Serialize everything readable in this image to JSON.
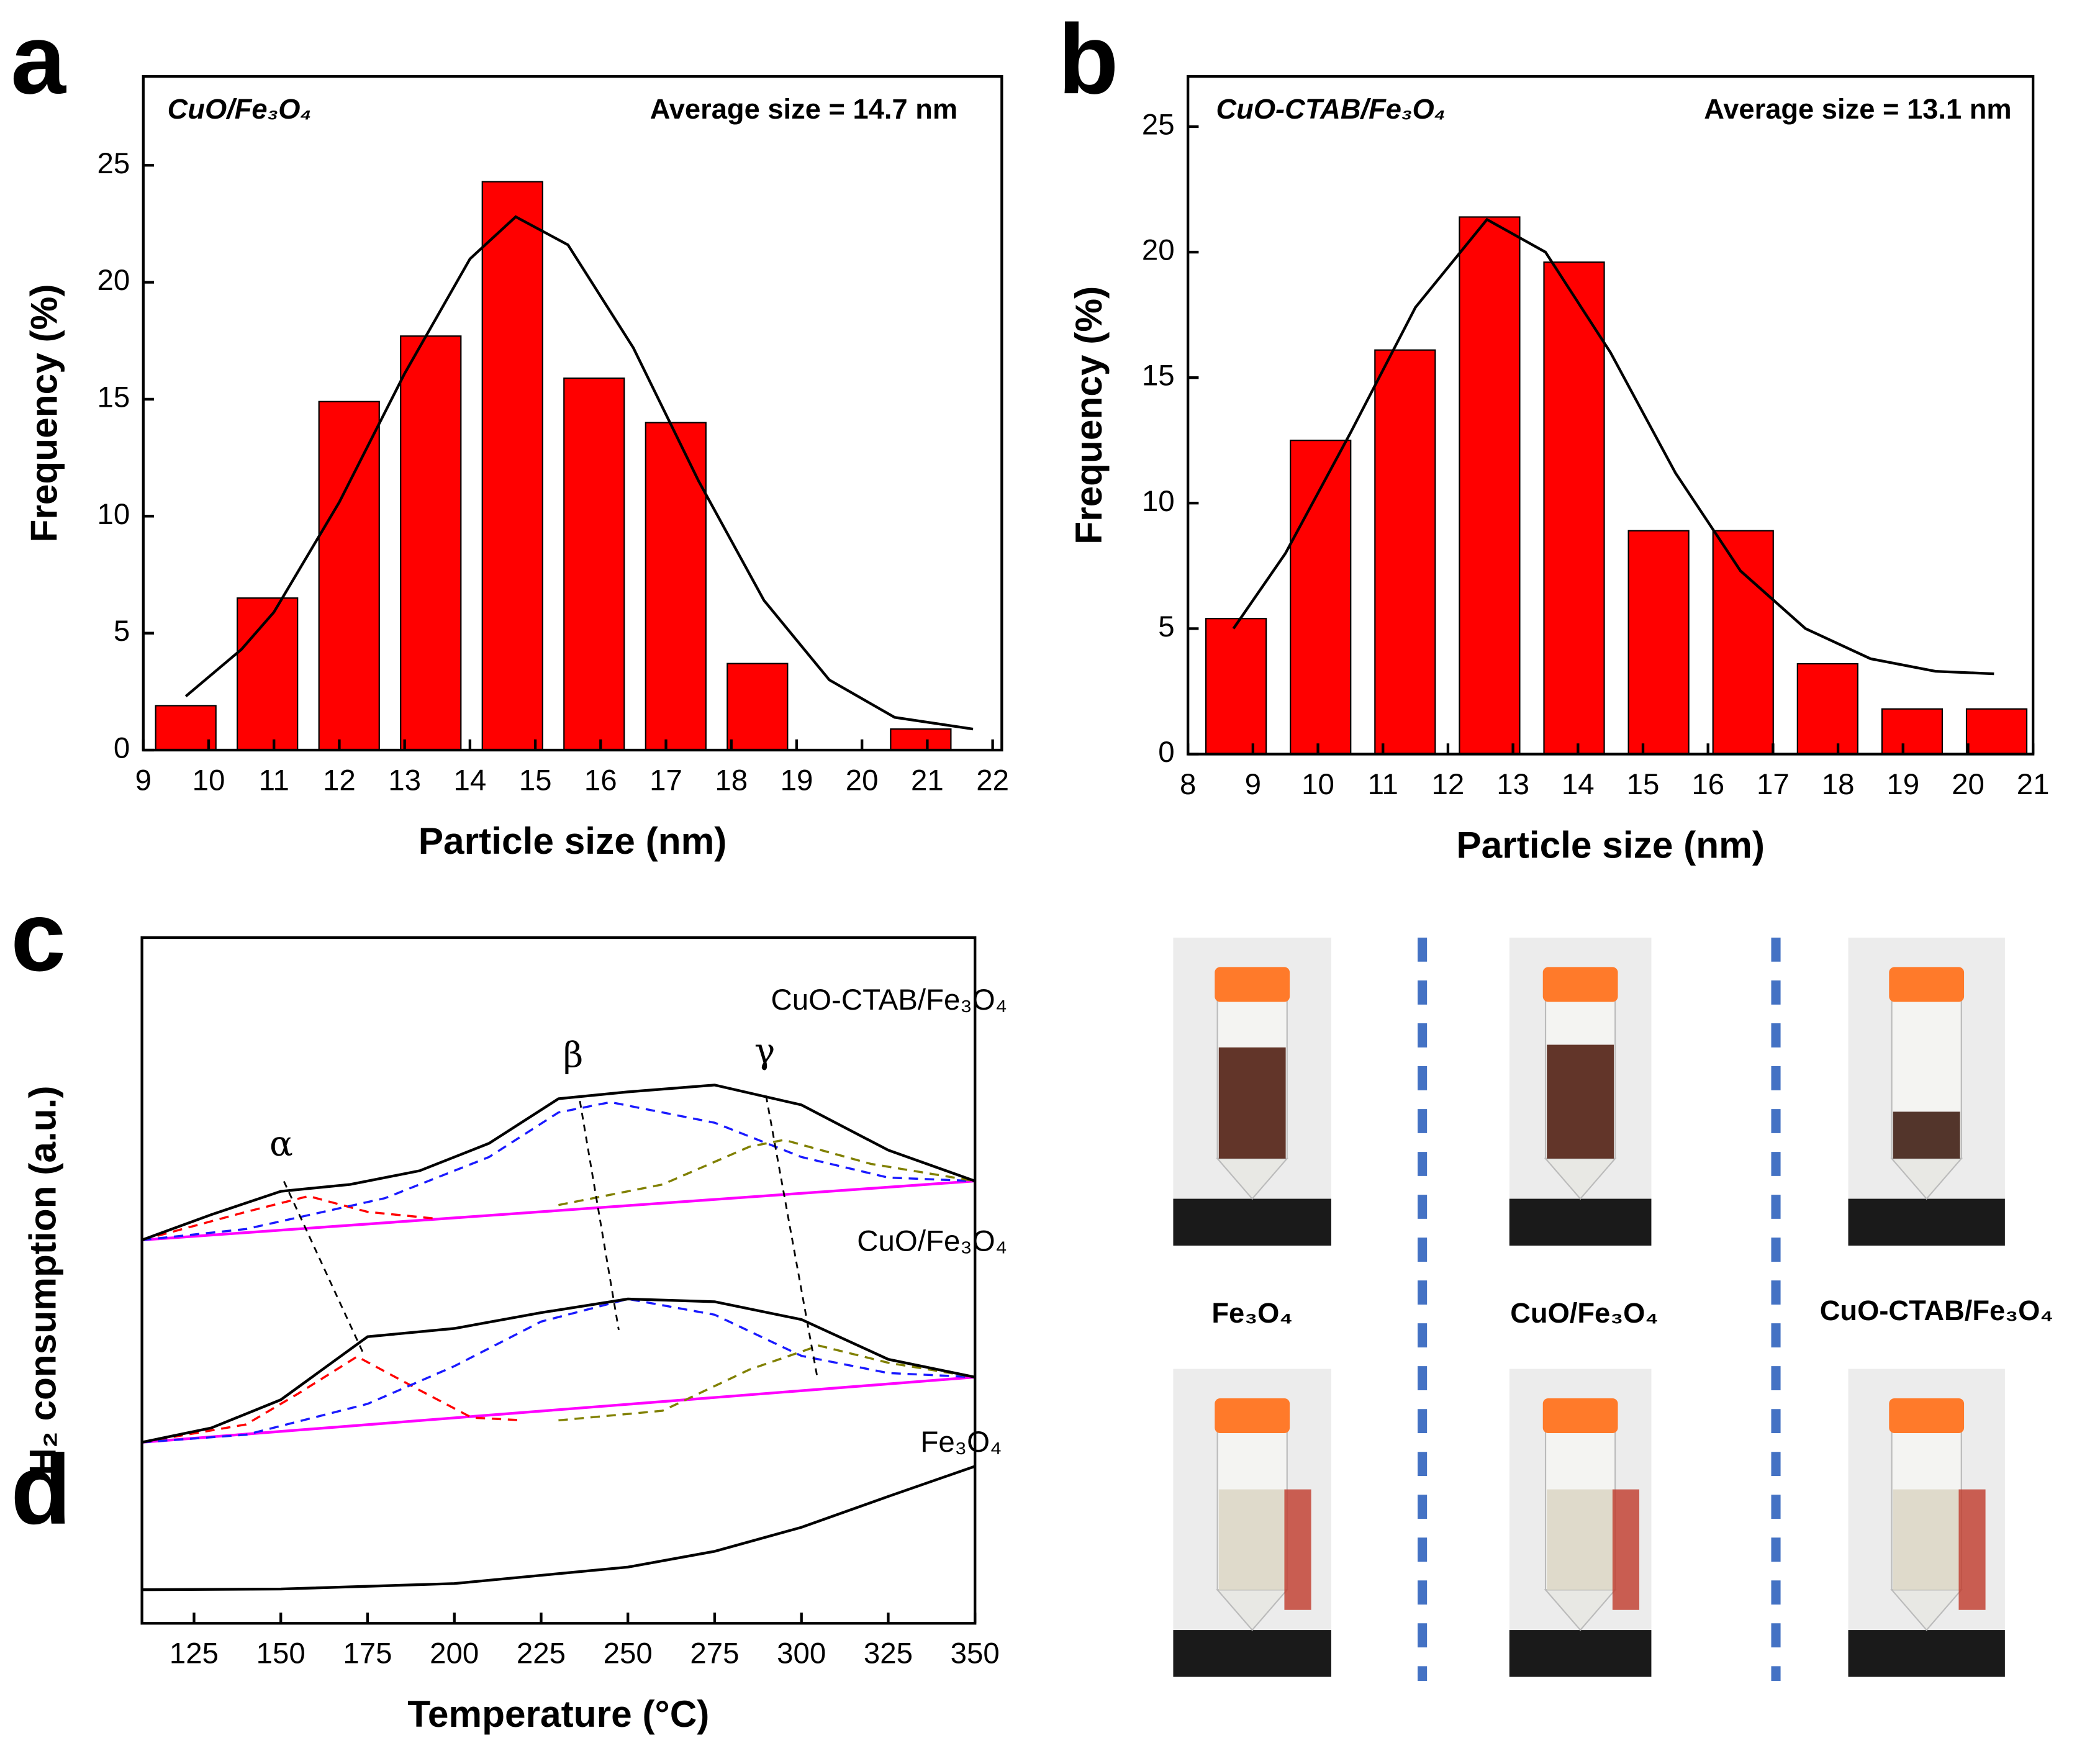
{
  "chart_data": [
    {
      "type": "bar",
      "panel": "a",
      "annotations": [
        "CuO/Fe₃O₄",
        "Average size = 14.7 nm"
      ],
      "xlabel": "Particle size (nm)",
      "ylabel": "Frequency (%)",
      "x": [
        9.65,
        10.9,
        12.15,
        13.4,
        14.65,
        15.9,
        17.15,
        18.4,
        19.65,
        20.9
      ],
      "values": [
        1.9,
        6.5,
        14.9,
        17.7,
        24.3,
        15.9,
        14.0,
        3.7,
        0,
        0.9
      ],
      "color": "#ff0000",
      "xlim": [
        9,
        22.14
      ],
      "ylim": [
        0,
        28.8
      ],
      "xticks": [
        9,
        10,
        11,
        12,
        13,
        14,
        15,
        16,
        17,
        18,
        19,
        20,
        21,
        22
      ],
      "yticks": [
        0,
        5,
        10,
        15,
        20,
        25
      ],
      "fit": {
        "color": "#000000",
        "x": [
          9.65,
          10.5,
          11,
          12,
          13,
          14,
          14.7,
          15.5,
          16.5,
          17.5,
          18.5,
          19.5,
          20.5,
          21.7
        ],
        "values": [
          2.3,
          4.3,
          5.9,
          10.6,
          16.1,
          21.0,
          22.8,
          21.6,
          17.2,
          11.5,
          6.4,
          3.0,
          1.4,
          0.9
        ]
      }
    },
    {
      "type": "bar",
      "panel": "b",
      "annotations": [
        "CuO-CTAB/Fe₃O₄",
        "Average size = 13.1 nm"
      ],
      "xlabel": "Particle size (nm)",
      "ylabel": "Frequency (%)",
      "x": [
        8.74,
        10.04,
        11.34,
        12.64,
        13.94,
        15.24,
        16.54,
        17.84,
        19.14,
        20.44
      ],
      "values": [
        5.4,
        12.5,
        16.1,
        21.4,
        19.6,
        8.9,
        8.9,
        3.6,
        1.8,
        1.8
      ],
      "color": "#ff0000",
      "xlim": [
        8,
        21
      ],
      "ylim": [
        0,
        27
      ],
      "xticks": [
        8,
        9,
        10,
        11,
        12,
        13,
        14,
        15,
        16,
        17,
        18,
        19,
        20,
        21
      ],
      "yticks": [
        0,
        5,
        10,
        15,
        20,
        25
      ],
      "fit": {
        "color": "#000000",
        "x": [
          8.7,
          9.5,
          10.5,
          11.5,
          12.6,
          13.5,
          14.5,
          15.5,
          16.5,
          17.5,
          18.5,
          19.5,
          20.4
        ],
        "values": [
          5.0,
          8.0,
          12.8,
          17.8,
          21.3,
          20.0,
          16.0,
          11.2,
          7.3,
          5.0,
          3.8,
          3.3,
          3.2
        ]
      }
    },
    {
      "type": "line",
      "panel": "c",
      "annotations": [
        "α",
        "β",
        "γ"
      ],
      "xlabel": "Temperature (°C)",
      "ylabel": "H₂ consumption (a.u.)",
      "xlim": [
        110,
        350
      ],
      "ylim": [
        0,
        100
      ],
      "xticks": [
        125,
        150,
        175,
        200,
        225,
        250,
        275,
        300,
        325,
        350
      ],
      "series": [
        {
          "name": "Fe₃O₄",
          "color": "#000000",
          "x": [
            110,
            150,
            200,
            250,
            275,
            300,
            325,
            350
          ],
          "values": [
            4.9,
            5.0,
            5.8,
            8.2,
            10.5,
            14.0,
            18.5,
            22.9
          ]
        },
        {
          "color": "#ff00ff",
          "x": [
            110,
            350
          ],
          "values": [
            26.4,
            35.9
          ]
        },
        {
          "color": "#ff0000",
          "dash": true,
          "x": [
            110,
            140,
            155,
            172,
            190,
            205,
            220
          ],
          "values": [
            26.4,
            29.0,
            33.5,
            38.9,
            34.0,
            30.0,
            29.6
          ]
        },
        {
          "color": "#1a1aff",
          "dash": true,
          "x": [
            110,
            140,
            175,
            200,
            225,
            250,
            275,
            300,
            325,
            350
          ],
          "values": [
            26.4,
            27.5,
            32.0,
            37.5,
            44.0,
            47.3,
            45.0,
            39.0,
            36.5,
            35.9
          ]
        },
        {
          "color": "#808000",
          "dash": true,
          "x": [
            230,
            260,
            285,
            305,
            325,
            350
          ],
          "values": [
            29.6,
            31.0,
            37.0,
            40.5,
            38.0,
            35.9
          ]
        },
        {
          "name": "CuO/Fe₃O₄",
          "color": "#000000",
          "x": [
            110,
            130,
            150,
            175,
            200,
            225,
            250,
            275,
            300,
            325,
            350
          ],
          "values": [
            26.4,
            28.5,
            32.6,
            41.8,
            43.0,
            45.3,
            47.3,
            46.9,
            44.3,
            38.5,
            35.9
          ]
        },
        {
          "color": "#ff00ff",
          "x": [
            110,
            350
          ],
          "values": [
            55.9,
            64.5
          ]
        },
        {
          "color": "#ff0000",
          "dash": true,
          "x": [
            110,
            140,
            158,
            175,
            195
          ],
          "values": [
            55.9,
            60.0,
            62.3,
            60.0,
            59.0
          ]
        },
        {
          "color": "#1a1aff",
          "dash": true,
          "x": [
            110,
            140,
            180,
            210,
            230,
            245,
            275,
            300,
            325,
            350
          ],
          "values": [
            55.9,
            57.5,
            62.0,
            68.0,
            74.5,
            76.0,
            73.0,
            68.0,
            65.0,
            64.5
          ]
        },
        {
          "color": "#808000",
          "dash": true,
          "x": [
            230,
            260,
            285,
            295,
            320,
            350
          ],
          "values": [
            61.0,
            64.0,
            69.5,
            70.5,
            67.0,
            64.5
          ]
        },
        {
          "name": "CuO-CTAB/Fe₃O₄",
          "color": "#000000",
          "x": [
            110,
            130,
            150,
            170,
            190,
            210,
            230,
            250,
            275,
            300,
            325,
            350
          ],
          "values": [
            55.9,
            59.6,
            63.0,
            64.0,
            66.0,
            70.0,
            76.5,
            77.5,
            78.5,
            75.6,
            69.0,
            64.5
          ]
        }
      ]
    }
  ],
  "photos": {
    "panel": "d",
    "labels": [
      "Fe₃O₄",
      "CuO/Fe₃O₄",
      "CuO-CTAB/Fe₃O₄"
    ]
  }
}
